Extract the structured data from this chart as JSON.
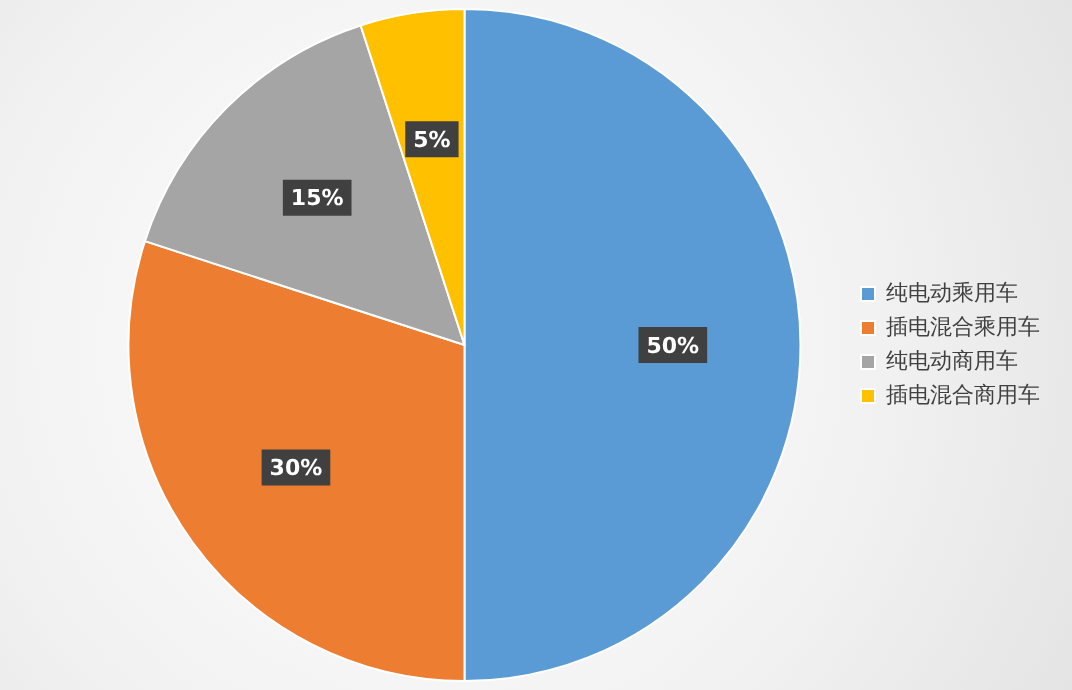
{
  "chart_data": {
    "type": "pie",
    "categories": [
      "纯电动乘用车",
      "插电混合乘用车",
      "纯电动商用车",
      "插电混合商用车"
    ],
    "values": [
      50,
      30,
      15,
      5
    ],
    "colors": [
      "#5b9bd5",
      "#ed7d31",
      "#a5a5a5",
      "#ffc000"
    ],
    "value_labels": [
      "50%",
      "30%",
      "15%",
      "5%"
    ],
    "legend": "right"
  }
}
